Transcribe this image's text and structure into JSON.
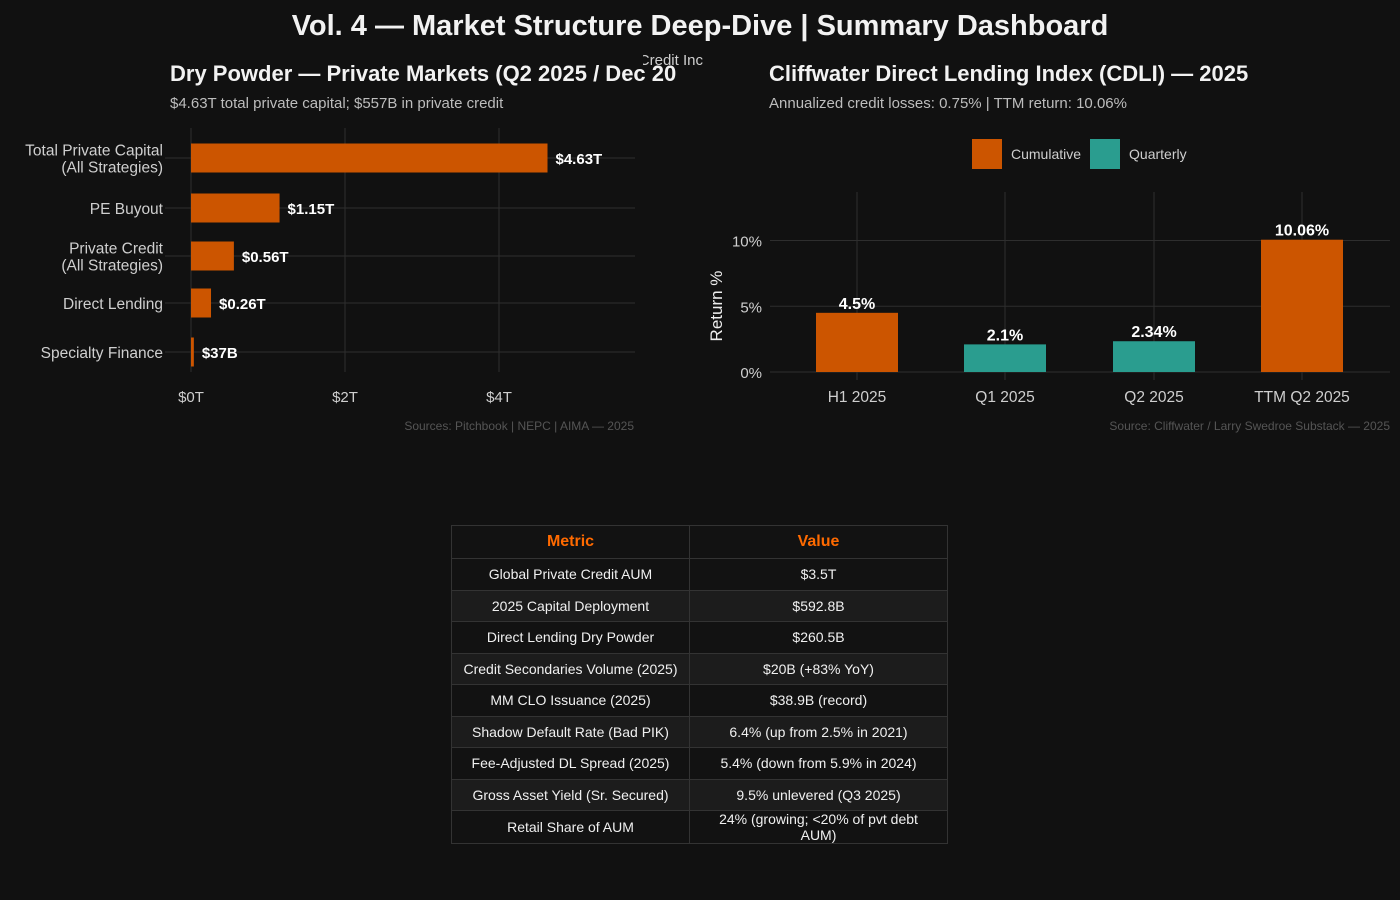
{
  "page": {
    "title": "Vol. 4 — Market Structure Deep-Dive | Summary Dashboard",
    "overlap_text": "Credit Inc"
  },
  "colors": {
    "background": "#111111",
    "orange": "#cc5500",
    "teal": "#2a9d8f",
    "grid": "#2e2e2e",
    "header_accent": "#ff6a00"
  },
  "chart_data": [
    {
      "type": "bar",
      "orientation": "horizontal",
      "title": "Dry Powder — Private Markets (Q2 2025 / Dec 20",
      "subtitle": "$4.63T total private capital; $557B in private credit",
      "categories": [
        "Total Private Capital\n(All Strategies)",
        "PE Buyout",
        "Private Credit\n(All Strategies)",
        "Direct Lending",
        "Specialty Finance"
      ],
      "values": [
        4.63,
        1.15,
        0.557,
        0.26,
        0.037
      ],
      "data_labels": [
        "$4.63T",
        "$1.15T",
        "$0.56T",
        "$0.26T",
        "$37B"
      ],
      "xlabel": "",
      "ylabel": "",
      "unit": "trillion USD",
      "xlim": [
        0,
        5.75
      ],
      "xticks": [
        0,
        2,
        4
      ],
      "xtick_labels": [
        "$0T",
        "$2T",
        "$4T"
      ],
      "grid": true,
      "caption": "Sources: Pitchbook | NEPC | AIMA — 2025"
    },
    {
      "type": "bar",
      "title": "Cliffwater Direct Lending Index (CDLI) — 2025",
      "subtitle": "Annualized credit losses: 0.75% | TTM return: 10.06%",
      "categories": [
        "H1 2025",
        "Q1 2025",
        "Q2 2025",
        "TTM Q2 2025"
      ],
      "values": [
        4.5,
        2.1,
        2.34,
        10.06
      ],
      "series_type": [
        "Cumulative",
        "Quarterly",
        "Quarterly",
        "Cumulative"
      ],
      "data_labels": [
        "4.5%",
        "2.1%",
        "2.34%",
        "10.06%"
      ],
      "legend": [
        {
          "name": "Cumulative",
          "color": "#cc5500"
        },
        {
          "name": "Quarterly",
          "color": "#2a9d8f"
        }
      ],
      "legend_position": "top",
      "xlabel": "",
      "ylabel": "Return %",
      "ylim": [
        0,
        13
      ],
      "yticks": [
        0,
        5,
        10
      ],
      "ytick_labels": [
        "0%",
        "5%",
        "10%"
      ],
      "grid": true,
      "caption": "Source: Cliffwater / Larry Swedroe Substack — 2025"
    }
  ],
  "table": {
    "headers": [
      "Metric",
      "Value"
    ],
    "rows": [
      [
        "Global Private Credit AUM",
        "$3.5T"
      ],
      [
        "2025 Capital Deployment",
        "$592.8B"
      ],
      [
        "Direct Lending Dry Powder",
        "$260.5B"
      ],
      [
        "Credit Secondaries Volume (2025)",
        "$20B (+83% YoY)"
      ],
      [
        "MM CLO Issuance (2025)",
        "$38.9B (record)"
      ],
      [
        "Shadow Default Rate (Bad PIK)",
        "6.4% (up from 2.5% in 2021)"
      ],
      [
        "Fee-Adjusted DL Spread (2025)",
        "5.4% (down from 5.9% in 2024)"
      ],
      [
        "Gross Asset Yield (Sr. Secured)",
        "9.5% unlevered (Q3 2025)"
      ],
      [
        "Retail Share of AUM",
        "24% (growing; <20% of pvt debt AUM)"
      ]
    ]
  }
}
